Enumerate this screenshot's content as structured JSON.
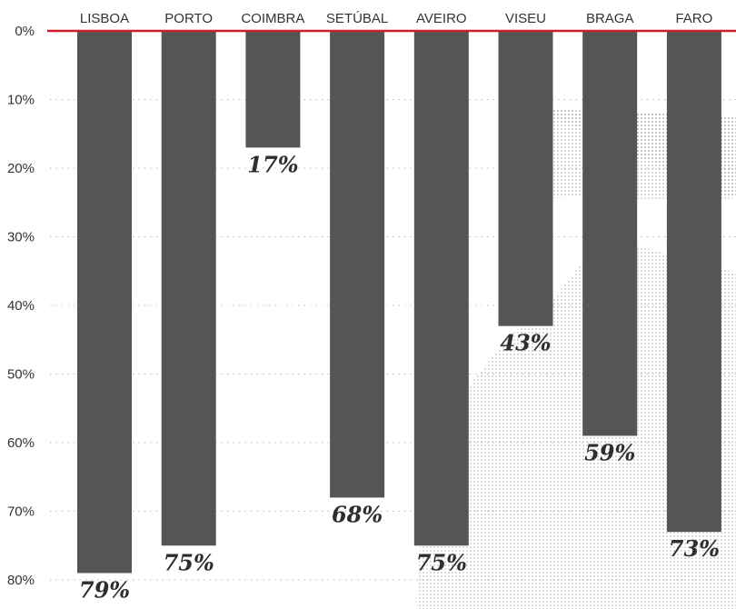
{
  "chart_data": {
    "type": "bar",
    "orientation": "vertical-downward",
    "categories": [
      "LISBOA",
      "PORTO",
      "COIMBRA",
      "SETÚBAL",
      "AVEIRO",
      "VISEU",
      "BRAGA",
      "FARO"
    ],
    "values": [
      79,
      75,
      17,
      68,
      75,
      43,
      59,
      73
    ],
    "value_labels": [
      "79%",
      "75%",
      "17%",
      "68%",
      "75%",
      "43%",
      "59%",
      "73%"
    ],
    "y_ticks": [
      "0%",
      "10%",
      "20%",
      "30%",
      "40%",
      "50%",
      "60%",
      "70%",
      "80%"
    ],
    "ylim": [
      0,
      80
    ],
    "unit": "%",
    "grid": true,
    "title": "",
    "xlabel": "",
    "ylabel": ""
  },
  "colors": {
    "bar": "#555555",
    "baseline": "#cc1f2d",
    "grid": "#bbbbbb",
    "text": "#333333",
    "background_image": "#9a9a9a"
  },
  "background_icon": "pillow-photo-halftone"
}
